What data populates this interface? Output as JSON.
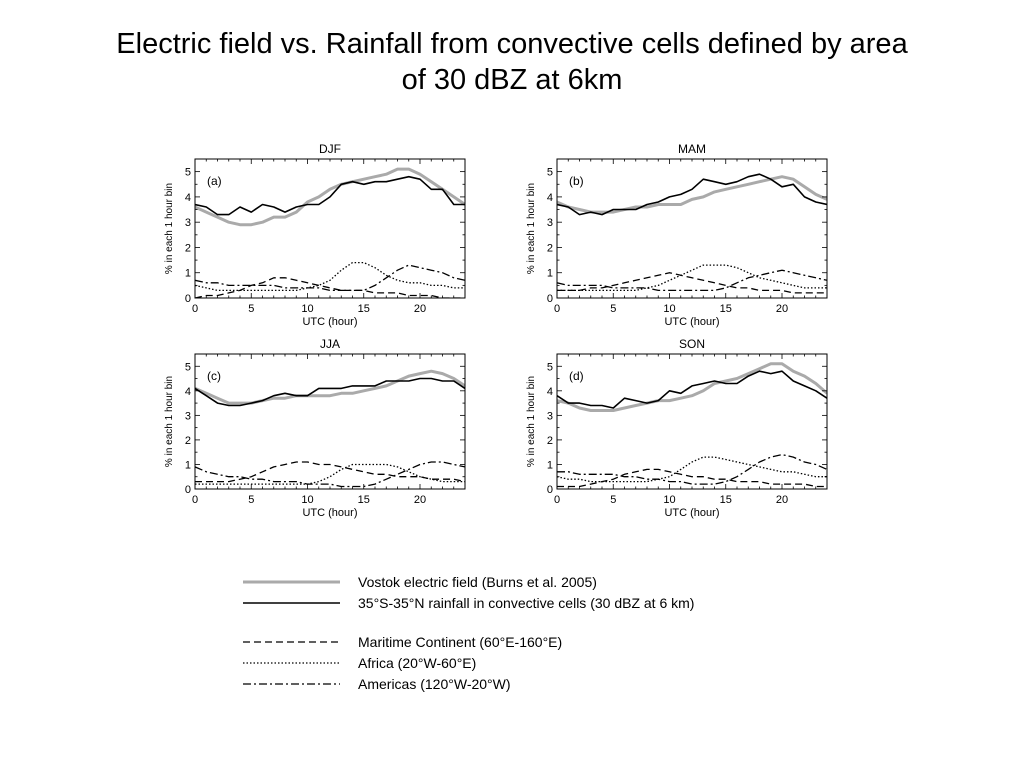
{
  "slide": {
    "title_line1": "Electric field vs. Rainfall from convective cells defined by area",
    "title_line2": "of 30 dBZ at 6km"
  },
  "legend": {
    "items": [
      {
        "label": "Vostok electric field (Burns et al. 2005)",
        "style": "solid-gray"
      },
      {
        "label": "35°S-35°N rainfall in convective cells (30 dBZ at 6 km)",
        "style": "solid-black"
      },
      {
        "label": "Maritime Continent (60°E-160°E)",
        "style": "dashed"
      },
      {
        "label": "Africa (20°W-60°E)",
        "style": "dotted"
      },
      {
        "label": "Americas (120°W-20°W)",
        "style": "dashdot"
      }
    ]
  },
  "chart_data": [
    {
      "type": "line",
      "season": "DJF",
      "panel": "(a)",
      "xlabel": "UTC (hour)",
      "ylabel": "% in each 1 hour bin",
      "xlim": [
        0,
        24
      ],
      "ylim": [
        0,
        5.5
      ],
      "xticks": [
        0,
        5,
        10,
        15,
        20
      ],
      "yticks": [
        0,
        1,
        2,
        3,
        4,
        5
      ],
      "x": [
        0,
        1,
        2,
        3,
        4,
        5,
        6,
        7,
        8,
        9,
        10,
        11,
        12,
        13,
        14,
        15,
        16,
        17,
        18,
        19,
        20,
        21,
        22,
        23,
        24
      ],
      "series": [
        {
          "key": "vostok",
          "values": [
            3.6,
            3.4,
            3.2,
            3.0,
            2.9,
            2.9,
            3.0,
            3.2,
            3.2,
            3.4,
            3.8,
            4.0,
            4.3,
            4.5,
            4.6,
            4.7,
            4.8,
            4.9,
            5.1,
            5.1,
            4.9,
            4.6,
            4.3,
            4.0,
            3.7
          ]
        },
        {
          "key": "rainfall",
          "values": [
            3.7,
            3.6,
            3.3,
            3.3,
            3.6,
            3.4,
            3.7,
            3.6,
            3.4,
            3.6,
            3.7,
            3.7,
            4.0,
            4.5,
            4.6,
            4.5,
            4.6,
            4.6,
            4.7,
            4.8,
            4.7,
            4.3,
            4.3,
            3.7,
            3.7
          ]
        },
        {
          "key": "maritime",
          "values": [
            0.0,
            0.1,
            0.1,
            0.2,
            0.3,
            0.5,
            0.6,
            0.8,
            0.8,
            0.7,
            0.6,
            0.5,
            0.4,
            0.3,
            0.3,
            0.3,
            0.2,
            0.2,
            0.2,
            0.1,
            0.1,
            0.1,
            0.0,
            0.0,
            0.0
          ]
        },
        {
          "key": "africa",
          "values": [
            0.5,
            0.4,
            0.3,
            0.3,
            0.3,
            0.3,
            0.3,
            0.3,
            0.3,
            0.3,
            0.4,
            0.5,
            0.7,
            1.1,
            1.4,
            1.4,
            1.2,
            0.9,
            0.7,
            0.6,
            0.6,
            0.5,
            0.5,
            0.4,
            0.4
          ]
        },
        {
          "key": "americas",
          "values": [
            0.7,
            0.6,
            0.6,
            0.5,
            0.5,
            0.5,
            0.5,
            0.5,
            0.4,
            0.4,
            0.4,
            0.4,
            0.3,
            0.3,
            0.3,
            0.3,
            0.5,
            0.8,
            1.1,
            1.3,
            1.2,
            1.1,
            1.0,
            0.8,
            0.7
          ]
        }
      ]
    },
    {
      "type": "line",
      "season": "MAM",
      "panel": "(b)",
      "xlabel": "UTC (hour)",
      "ylabel": "% in each 1 hour bin",
      "xlim": [
        0,
        24
      ],
      "ylim": [
        0,
        5.5
      ],
      "xticks": [
        0,
        5,
        10,
        15,
        20
      ],
      "yticks": [
        0,
        1,
        2,
        3,
        4,
        5
      ],
      "x": [
        0,
        1,
        2,
        3,
        4,
        5,
        6,
        7,
        8,
        9,
        10,
        11,
        12,
        13,
        14,
        15,
        16,
        17,
        18,
        19,
        20,
        21,
        22,
        23,
        24
      ],
      "series": [
        {
          "key": "vostok",
          "values": [
            3.8,
            3.6,
            3.5,
            3.4,
            3.4,
            3.4,
            3.5,
            3.6,
            3.6,
            3.7,
            3.7,
            3.7,
            3.9,
            4.0,
            4.2,
            4.3,
            4.4,
            4.5,
            4.6,
            4.7,
            4.8,
            4.7,
            4.4,
            4.1,
            3.9
          ]
        },
        {
          "key": "rainfall",
          "values": [
            3.7,
            3.6,
            3.3,
            3.4,
            3.3,
            3.5,
            3.5,
            3.5,
            3.7,
            3.8,
            4.0,
            4.1,
            4.3,
            4.7,
            4.6,
            4.5,
            4.6,
            4.8,
            4.9,
            4.7,
            4.4,
            4.5,
            4.0,
            3.8,
            3.7
          ]
        },
        {
          "key": "maritime",
          "values": [
            0.3,
            0.3,
            0.3,
            0.4,
            0.4,
            0.5,
            0.6,
            0.7,
            0.8,
            0.9,
            1.0,
            0.9,
            0.8,
            0.7,
            0.6,
            0.5,
            0.4,
            0.4,
            0.3,
            0.3,
            0.3,
            0.2,
            0.2,
            0.2,
            0.2
          ]
        },
        {
          "key": "africa",
          "values": [
            0.3,
            0.3,
            0.3,
            0.3,
            0.3,
            0.3,
            0.3,
            0.3,
            0.4,
            0.5,
            0.7,
            0.9,
            1.1,
            1.3,
            1.3,
            1.3,
            1.2,
            1.0,
            0.8,
            0.7,
            0.6,
            0.5,
            0.4,
            0.4,
            0.4
          ]
        },
        {
          "key": "americas",
          "values": [
            0.6,
            0.5,
            0.5,
            0.5,
            0.5,
            0.4,
            0.4,
            0.4,
            0.4,
            0.3,
            0.3,
            0.3,
            0.3,
            0.3,
            0.3,
            0.4,
            0.6,
            0.8,
            0.9,
            1.0,
            1.1,
            1.0,
            0.9,
            0.8,
            0.7
          ]
        }
      ]
    },
    {
      "type": "line",
      "season": "JJA",
      "panel": "(c)",
      "xlabel": "UTC (hour)",
      "ylabel": "% in each 1 hour bin",
      "xlim": [
        0,
        24
      ],
      "ylim": [
        0,
        5.5
      ],
      "xticks": [
        0,
        5,
        10,
        15,
        20
      ],
      "yticks": [
        0,
        1,
        2,
        3,
        4,
        5
      ],
      "x": [
        0,
        1,
        2,
        3,
        4,
        5,
        6,
        7,
        8,
        9,
        10,
        11,
        12,
        13,
        14,
        15,
        16,
        17,
        18,
        19,
        20,
        21,
        22,
        23,
        24
      ],
      "series": [
        {
          "key": "vostok",
          "values": [
            4.1,
            3.9,
            3.7,
            3.5,
            3.5,
            3.5,
            3.6,
            3.7,
            3.7,
            3.8,
            3.8,
            3.8,
            3.8,
            3.9,
            3.9,
            4.0,
            4.1,
            4.2,
            4.4,
            4.6,
            4.7,
            4.8,
            4.7,
            4.5,
            4.2
          ]
        },
        {
          "key": "rainfall",
          "values": [
            4.1,
            3.8,
            3.5,
            3.4,
            3.4,
            3.5,
            3.6,
            3.8,
            3.9,
            3.8,
            3.8,
            4.1,
            4.1,
            4.1,
            4.2,
            4.2,
            4.2,
            4.4,
            4.4,
            4.4,
            4.5,
            4.5,
            4.4,
            4.4,
            4.1
          ]
        },
        {
          "key": "maritime",
          "values": [
            0.3,
            0.3,
            0.3,
            0.3,
            0.4,
            0.5,
            0.7,
            0.9,
            1.0,
            1.1,
            1.1,
            1.0,
            1.0,
            0.9,
            0.8,
            0.7,
            0.6,
            0.6,
            0.5,
            0.5,
            0.5,
            0.4,
            0.4,
            0.4,
            0.3
          ]
        },
        {
          "key": "africa",
          "values": [
            0.2,
            0.2,
            0.2,
            0.2,
            0.2,
            0.2,
            0.2,
            0.2,
            0.2,
            0.2,
            0.2,
            0.3,
            0.5,
            0.8,
            1.0,
            1.0,
            1.0,
            1.0,
            0.9,
            0.7,
            0.5,
            0.4,
            0.3,
            0.3,
            0.3
          ]
        },
        {
          "key": "americas",
          "values": [
            0.9,
            0.7,
            0.6,
            0.5,
            0.5,
            0.4,
            0.4,
            0.3,
            0.3,
            0.3,
            0.2,
            0.2,
            0.2,
            0.1,
            0.1,
            0.1,
            0.2,
            0.4,
            0.6,
            0.8,
            1.0,
            1.1,
            1.1,
            1.0,
            0.9
          ]
        }
      ]
    },
    {
      "type": "line",
      "season": "SON",
      "panel": "(d)",
      "xlabel": "UTC (hour)",
      "ylabel": "% in each 1 hour bin",
      "xlim": [
        0,
        24
      ],
      "ylim": [
        0,
        5.5
      ],
      "xticks": [
        0,
        5,
        10,
        15,
        20
      ],
      "yticks": [
        0,
        1,
        2,
        3,
        4,
        5
      ],
      "x": [
        0,
        1,
        2,
        3,
        4,
        5,
        6,
        7,
        8,
        9,
        10,
        11,
        12,
        13,
        14,
        15,
        16,
        17,
        18,
        19,
        20,
        21,
        22,
        23,
        24
      ],
      "series": [
        {
          "key": "vostok",
          "values": [
            3.6,
            3.5,
            3.3,
            3.2,
            3.2,
            3.2,
            3.3,
            3.4,
            3.5,
            3.6,
            3.6,
            3.7,
            3.8,
            4.0,
            4.3,
            4.4,
            4.5,
            4.7,
            4.9,
            5.1,
            5.1,
            4.8,
            4.6,
            4.3,
            3.9
          ]
        },
        {
          "key": "rainfall",
          "values": [
            3.8,
            3.5,
            3.5,
            3.4,
            3.4,
            3.3,
            3.7,
            3.6,
            3.5,
            3.6,
            4.0,
            3.9,
            4.2,
            4.3,
            4.4,
            4.3,
            4.3,
            4.6,
            4.8,
            4.7,
            4.8,
            4.4,
            4.2,
            4.0,
            3.7
          ]
        },
        {
          "key": "maritime",
          "values": [
            0.1,
            0.1,
            0.1,
            0.2,
            0.3,
            0.4,
            0.6,
            0.7,
            0.8,
            0.8,
            0.7,
            0.6,
            0.5,
            0.5,
            0.4,
            0.4,
            0.3,
            0.3,
            0.3,
            0.2,
            0.2,
            0.2,
            0.2,
            0.1,
            0.1
          ]
        },
        {
          "key": "africa",
          "values": [
            0.5,
            0.4,
            0.4,
            0.3,
            0.3,
            0.3,
            0.3,
            0.3,
            0.3,
            0.4,
            0.5,
            0.8,
            1.1,
            1.3,
            1.3,
            1.2,
            1.1,
            1.0,
            0.9,
            0.8,
            0.7,
            0.7,
            0.6,
            0.5,
            0.5
          ]
        },
        {
          "key": "americas",
          "values": [
            0.7,
            0.7,
            0.6,
            0.6,
            0.6,
            0.6,
            0.5,
            0.5,
            0.4,
            0.4,
            0.3,
            0.3,
            0.2,
            0.2,
            0.2,
            0.3,
            0.5,
            0.8,
            1.1,
            1.3,
            1.4,
            1.3,
            1.1,
            1.0,
            0.8
          ]
        }
      ]
    }
  ]
}
